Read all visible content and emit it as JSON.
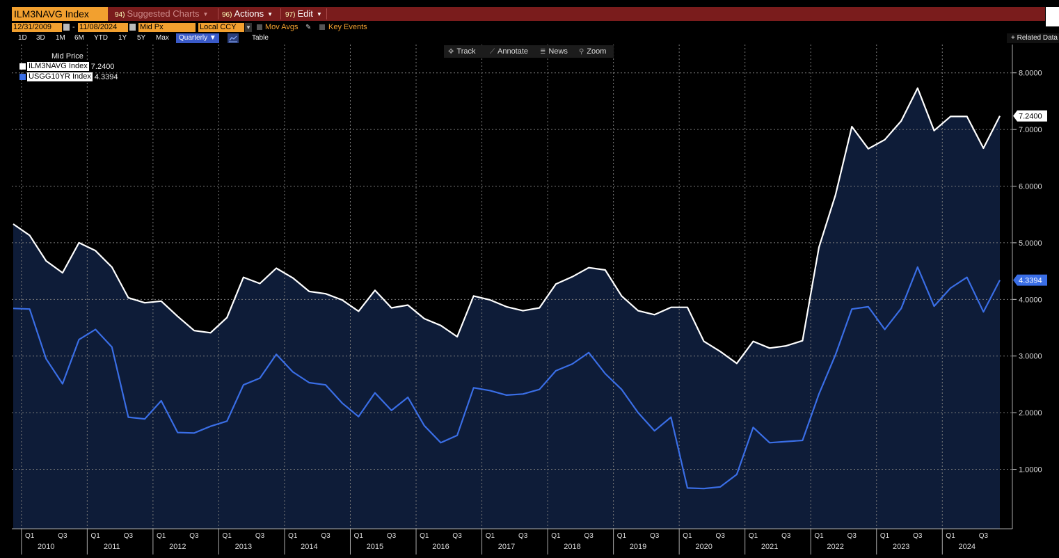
{
  "toolbar": {
    "ticker": "ILM3NAVG Index",
    "suggested": {
      "num": "94)",
      "label": "Suggested Charts"
    },
    "actions": {
      "num": "96)",
      "label": "Actions"
    },
    "edit": {
      "num": "97)",
      "label": "Edit"
    }
  },
  "controls": {
    "start_date": "12/31/2009",
    "end_date": "11/08/2024",
    "date_sep": "-",
    "field": "Mid Px",
    "currency": "Local CCY",
    "mov_avgs": "Mov Avgs",
    "key_events": "Key Events"
  },
  "ranges": [
    "1D",
    "3D",
    "1M",
    "6M",
    "YTD",
    "1Y",
    "5Y",
    "Max"
  ],
  "frequency": "Quarterly",
  "table_label": "Table",
  "related": "+ Related Data",
  "chart_tools": [
    {
      "icon": "crosshair-icon",
      "label": "Track"
    },
    {
      "icon": "pencil-icon",
      "label": "Annotate"
    },
    {
      "icon": "news-icon",
      "label": "News"
    },
    {
      "icon": "magnifier-icon",
      "label": "Zoom"
    }
  ],
  "colors": {
    "white_series": "#ffffff",
    "blue_series": "#3a6ee6",
    "fill": "#0e1c38",
    "accent": "#f2a02f",
    "bar": "#7a1c1c"
  },
  "chart_data": {
    "type": "line",
    "title": "Mid Price",
    "ylim": [
      -0.05,
      8.5
    ],
    "yticks": [
      {
        "v": 1.0,
        "label": "1.0000"
      },
      {
        "v": 2.0,
        "label": "2.0000"
      },
      {
        "v": 3.0,
        "label": "3.0000"
      },
      {
        "v": 4.0,
        "label": "4.0000"
      },
      {
        "v": 5.0,
        "label": "5.0000"
      },
      {
        "v": 6.0,
        "label": "6.0000"
      },
      {
        "v": 7.0,
        "label": "7.0000"
      },
      {
        "v": 8.0,
        "label": "8.0000"
      }
    ],
    "years": [
      "2010",
      "2011",
      "2012",
      "2013",
      "2014",
      "2015",
      "2016",
      "2017",
      "2018",
      "2019",
      "2020",
      "2021",
      "2022",
      "2023",
      "2024"
    ],
    "quarter_labels": [
      "Q1",
      "Q3"
    ],
    "x": [
      "2009-Q4",
      "2010-Q1",
      "2010-Q2",
      "2010-Q3",
      "2010-Q4",
      "2011-Q1",
      "2011-Q2",
      "2011-Q3",
      "2011-Q4",
      "2012-Q1",
      "2012-Q2",
      "2012-Q3",
      "2012-Q4",
      "2013-Q1",
      "2013-Q2",
      "2013-Q3",
      "2013-Q4",
      "2014-Q1",
      "2014-Q2",
      "2014-Q3",
      "2014-Q4",
      "2015-Q1",
      "2015-Q2",
      "2015-Q3",
      "2015-Q4",
      "2016-Q1",
      "2016-Q2",
      "2016-Q3",
      "2016-Q4",
      "2017-Q1",
      "2017-Q2",
      "2017-Q3",
      "2017-Q4",
      "2018-Q1",
      "2018-Q2",
      "2018-Q3",
      "2018-Q4",
      "2019-Q1",
      "2019-Q2",
      "2019-Q3",
      "2019-Q4",
      "2020-Q1",
      "2020-Q2",
      "2020-Q3",
      "2020-Q4",
      "2021-Q1",
      "2021-Q2",
      "2021-Q3",
      "2021-Q4",
      "2022-Q1",
      "2022-Q2",
      "2022-Q3",
      "2022-Q4",
      "2023-Q1",
      "2023-Q2",
      "2023-Q3",
      "2023-Q4",
      "2024-Q1",
      "2024-Q2",
      "2024-Q3",
      "2024-Q4"
    ],
    "series": [
      {
        "name": "ILM3NAVG Index",
        "last": "7.2400",
        "color": "#ffffff",
        "values": [
          5.33,
          5.13,
          4.68,
          4.47,
          5.0,
          4.86,
          4.57,
          4.03,
          3.94,
          3.97,
          3.7,
          3.45,
          3.41,
          3.68,
          4.39,
          4.28,
          4.55,
          4.38,
          4.14,
          4.1,
          3.99,
          3.79,
          4.16,
          3.85,
          3.9,
          3.66,
          3.54,
          3.34,
          4.06,
          3.99,
          3.87,
          3.8,
          3.85,
          4.27,
          4.4,
          4.56,
          4.52,
          4.06,
          3.8,
          3.73,
          3.86,
          3.86,
          3.26,
          3.08,
          2.87,
          3.26,
          3.14,
          3.18,
          3.27,
          4.92,
          5.84,
          7.05,
          6.66,
          6.82,
          7.15,
          7.73,
          6.98,
          7.23,
          7.23,
          6.67,
          7.24
        ]
      },
      {
        "name": "USGG10YR Index",
        "last": "4.3394",
        "color": "#3a6ee6",
        "values": [
          3.84,
          3.83,
          2.95,
          2.51,
          3.29,
          3.47,
          3.16,
          1.92,
          1.89,
          2.21,
          1.65,
          1.64,
          1.76,
          1.85,
          2.49,
          2.61,
          3.03,
          2.72,
          2.53,
          2.49,
          2.17,
          1.93,
          2.35,
          2.04,
          2.27,
          1.77,
          1.47,
          1.6,
          2.44,
          2.39,
          2.31,
          2.33,
          2.41,
          2.74,
          2.86,
          3.06,
          2.69,
          2.41,
          2.0,
          1.68,
          1.92,
          0.67,
          0.66,
          0.69,
          0.91,
          1.74,
          1.47,
          1.49,
          1.51,
          2.33,
          3.02,
          3.83,
          3.87,
          3.47,
          3.84,
          4.57,
          3.88,
          4.2,
          4.39,
          3.78,
          4.34
        ]
      }
    ]
  }
}
